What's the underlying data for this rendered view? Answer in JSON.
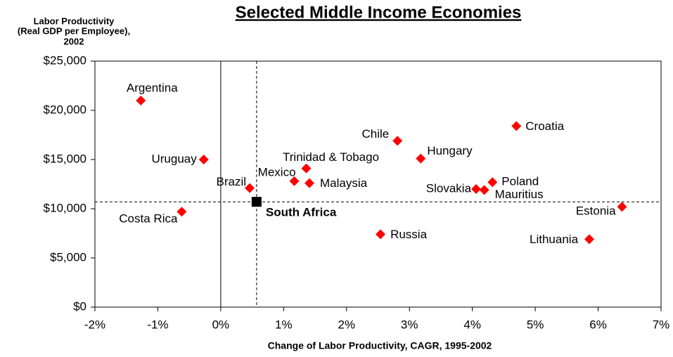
{
  "chart_data": {
    "type": "scatter",
    "title": "Selected Middle Income Economies",
    "ylabel": [
      "Labor Productivity",
      "(Real GDP per Employee),",
      "2002"
    ],
    "xlabel": "Change of Labor Productivity, CAGR, 1995-2002",
    "labels": [
      "Argentina",
      "Uruguay",
      "Costa Rica",
      "Brazil",
      "Mexico",
      "Trinidad & Tobago",
      "Malaysia",
      "Chile",
      "Russia",
      "Hungary",
      "Croatia",
      "Slovakia",
      "Mauritius",
      "Poland",
      "Estonia",
      "Lithuania"
    ],
    "x": [
      -1.27,
      -0.27,
      -0.62,
      0.46,
      1.17,
      1.36,
      1.41,
      2.81,
      2.54,
      3.18,
      4.7,
      4.06,
      4.19,
      4.32,
      6.38,
      5.86
    ],
    "values": [
      21000,
      15000,
      9700,
      12100,
      12800,
      14100,
      12600,
      16900,
      7400,
      15100,
      18400,
      12000,
      11900,
      12700,
      10200,
      6900
    ],
    "color": "#ff0000",
    "highlight": {
      "label": "South Africa",
      "x": 0.57,
      "y": 10700,
      "color": "#000000"
    },
    "reference_lines": true,
    "zero_line": true,
    "xlim": [
      -2,
      7
    ],
    "ylim": [
      0,
      25000
    ],
    "xticks": [
      {
        "value": -2,
        "label": "-2%"
      },
      {
        "value": -1,
        "label": "-1%"
      },
      {
        "value": 0,
        "label": "0%"
      },
      {
        "value": 1,
        "label": "1%"
      },
      {
        "value": 2,
        "label": "2%"
      },
      {
        "value": 3,
        "label": "3%"
      },
      {
        "value": 4,
        "label": "4%"
      },
      {
        "value": 5,
        "label": "5%"
      },
      {
        "value": 6,
        "label": "6%"
      },
      {
        "value": 7,
        "label": "7%"
      }
    ],
    "yticks": [
      {
        "value": 0,
        "label": "$0"
      },
      {
        "value": 5000,
        "label": "$5,000"
      },
      {
        "value": 10000,
        "label": "$10,000"
      },
      {
        "value": 15000,
        "label": "$15,000"
      },
      {
        "value": 20000,
        "label": "$20,000"
      },
      {
        "value": 25000,
        "label": "$25,000"
      }
    ]
  }
}
